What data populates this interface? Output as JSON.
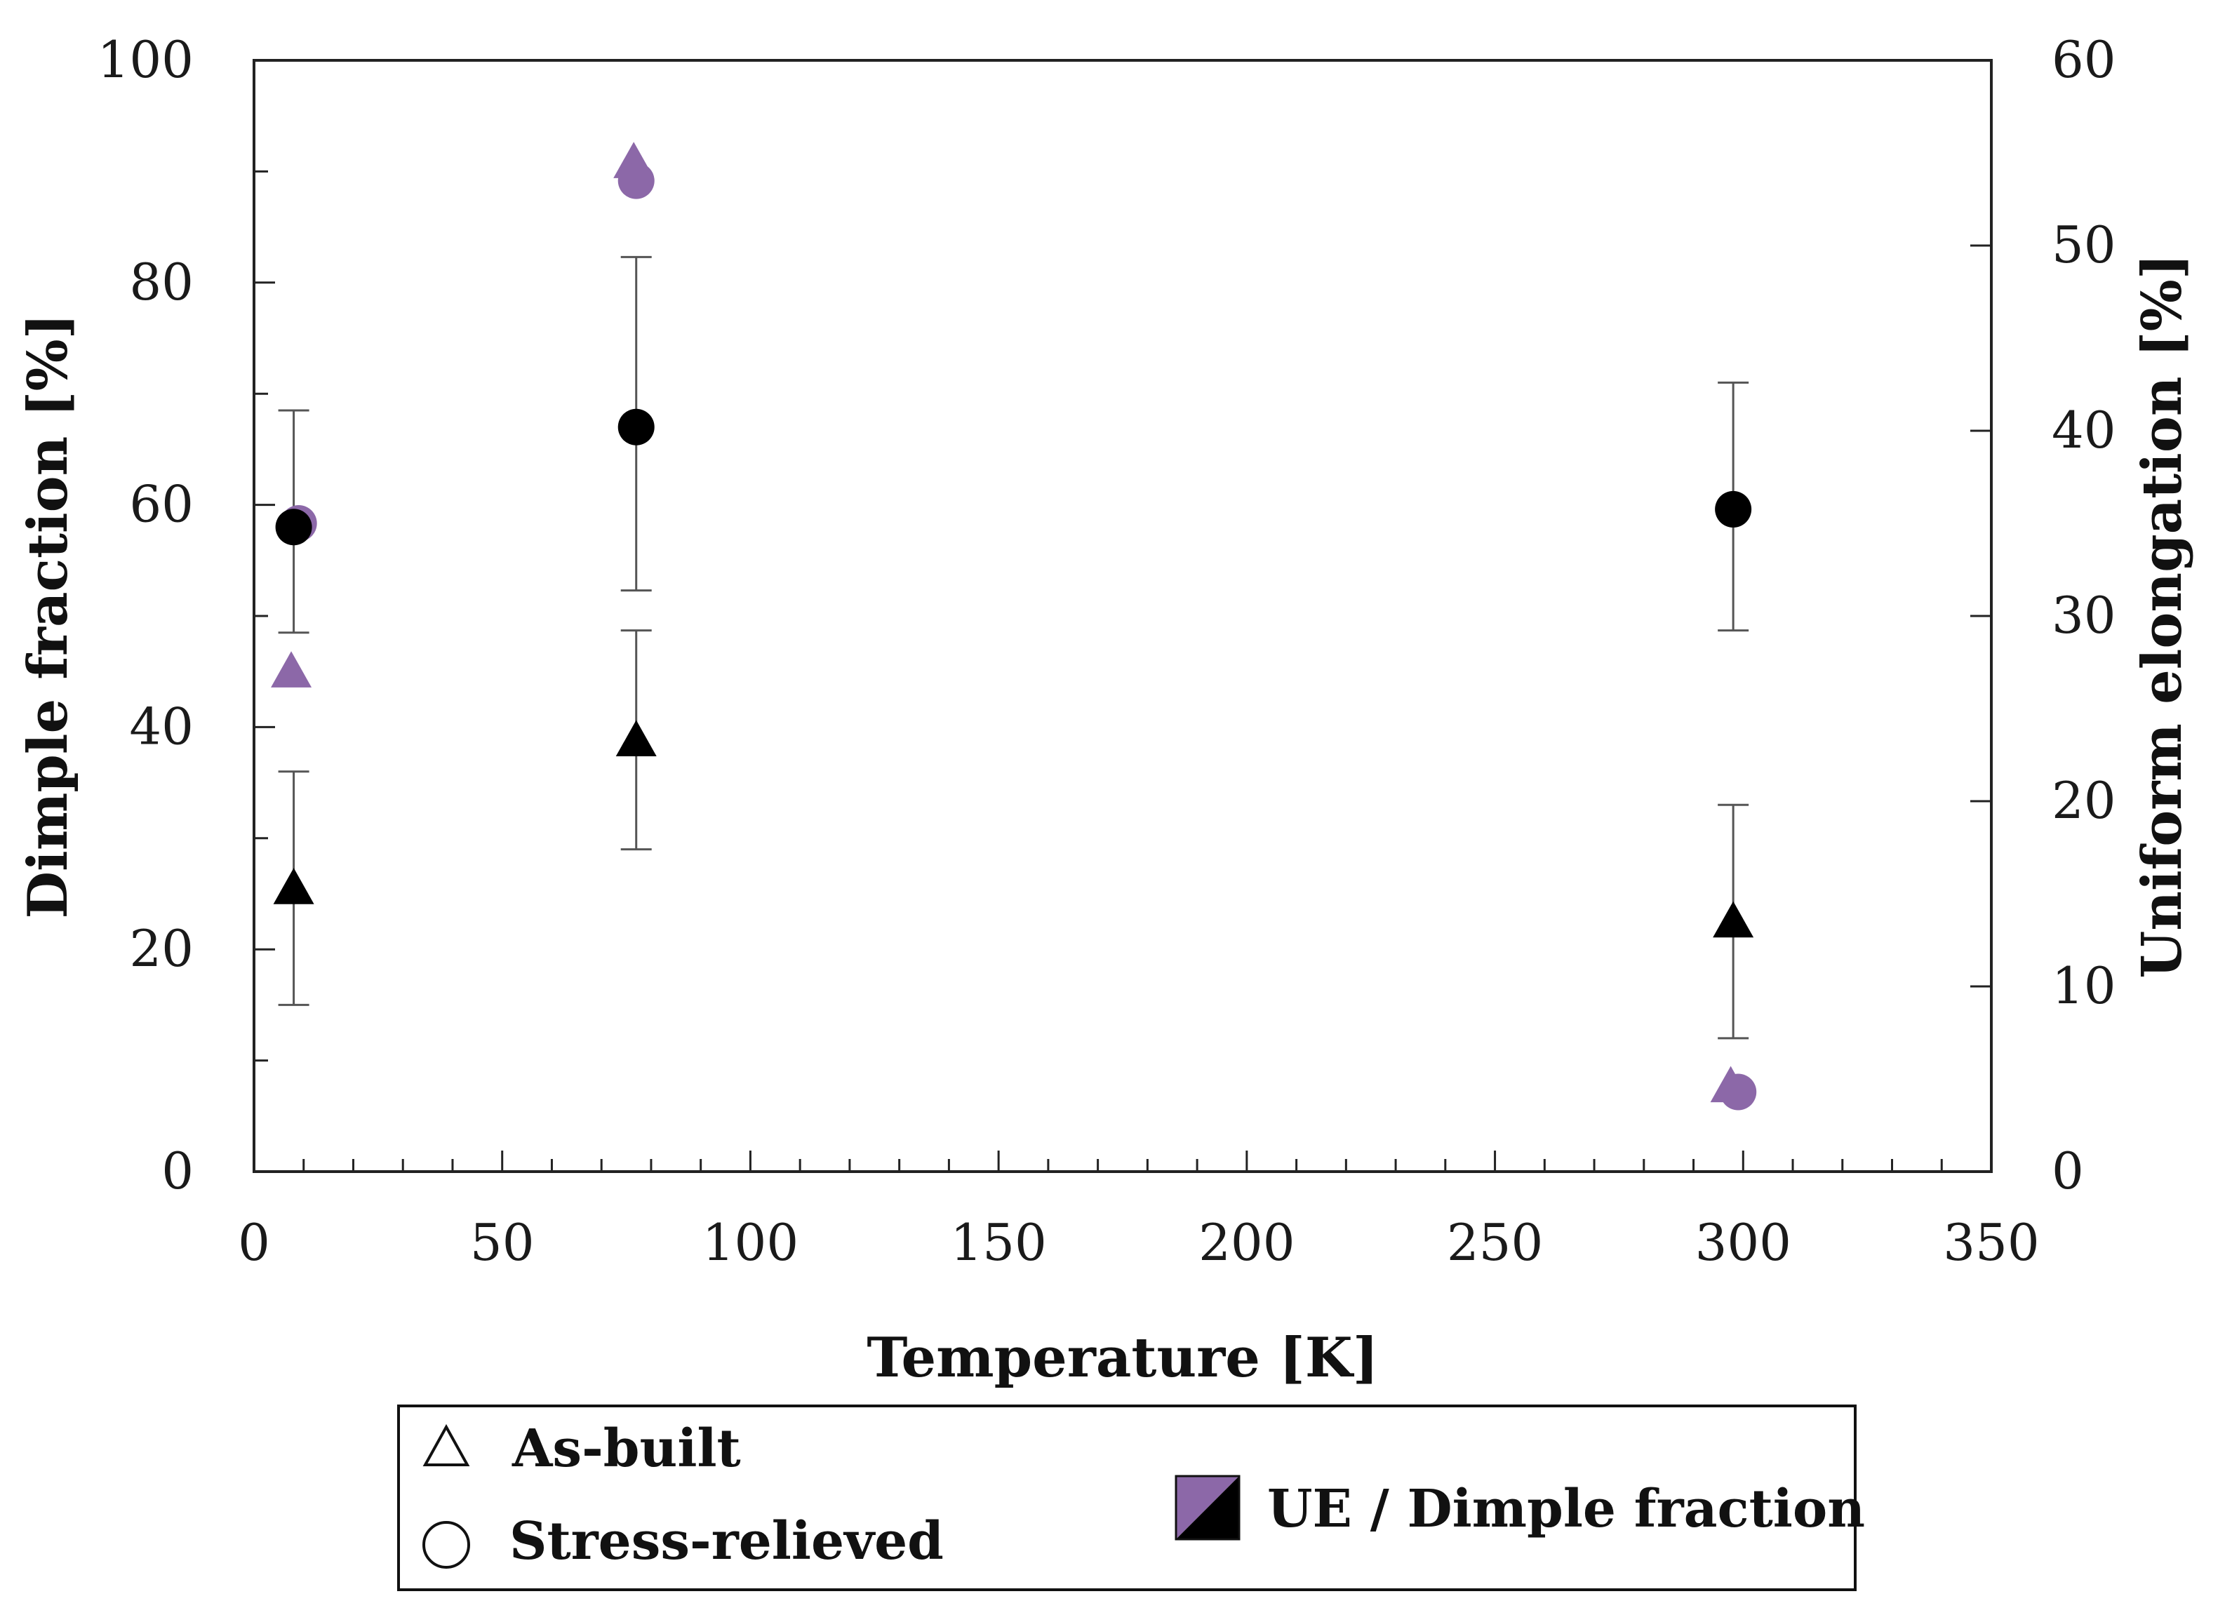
{
  "chart_data": {
    "type": "scatter",
    "xlabel": "Temperature [K]",
    "ylabel_left": "Dimple fraction [%]",
    "ylabel_right": "Uniform elongation [%]",
    "xlim": [
      0,
      350
    ],
    "ylim_left": [
      0,
      100
    ],
    "ylim_right": [
      0,
      60
    ],
    "x_ticks": [
      "0",
      "50",
      "100",
      "150",
      "200",
      "250",
      "300",
      "350"
    ],
    "y_left_ticks": [
      "0",
      "20",
      "40",
      "60",
      "80",
      "100"
    ],
    "y_right_ticks": [
      "0",
      "10",
      "20",
      "30",
      "40",
      "50",
      "60"
    ],
    "colors": {
      "dimple": "#000000",
      "ue": "#8c68a8",
      "axis": "#222222",
      "errorbar": "#555555"
    },
    "series": [
      {
        "name": "As-built dimple fraction",
        "marker": "triangle",
        "axis": "left",
        "color": "black",
        "points": [
          {
            "x": 8,
            "y": 25.5,
            "err_low": 15,
            "err_high": 36
          },
          {
            "x": 77,
            "y": 38.8,
            "err_low": 29,
            "err_high": 48.7
          },
          {
            "x": 298,
            "y": 22.5,
            "err_low": 12,
            "err_high": 33
          }
        ]
      },
      {
        "name": "Stress-relieved dimple fraction",
        "marker": "circle",
        "axis": "left",
        "color": "black",
        "points": [
          {
            "x": 8,
            "y": 58,
            "err_low": 48.5,
            "err_high": 68.5
          },
          {
            "x": 77,
            "y": 67,
            "err_low": 52.3,
            "err_high": 82.3
          },
          {
            "x": 298,
            "y": 59.6,
            "err_low": 48.7,
            "err_high": 71
          }
        ]
      },
      {
        "name": "As-built uniform elongation",
        "marker": "triangle",
        "axis": "right",
        "color": "purple",
        "points": [
          {
            "x": 7.5,
            "y": 27
          },
          {
            "x": 76.5,
            "y": 54.5
          },
          {
            "x": 297.5,
            "y": 4.6
          }
        ]
      },
      {
        "name": "Stress-relieved uniform elongation",
        "marker": "circle",
        "axis": "right",
        "color": "purple",
        "points": [
          {
            "x": 9,
            "y": 35
          },
          {
            "x": 77,
            "y": 53.5
          },
          {
            "x": 299,
            "y": 4.3
          }
        ]
      }
    ],
    "legend": {
      "as_built": "As-built",
      "stress_relieved": "Stress-relieved",
      "ue_dimple": "UE / Dimple fraction"
    }
  }
}
